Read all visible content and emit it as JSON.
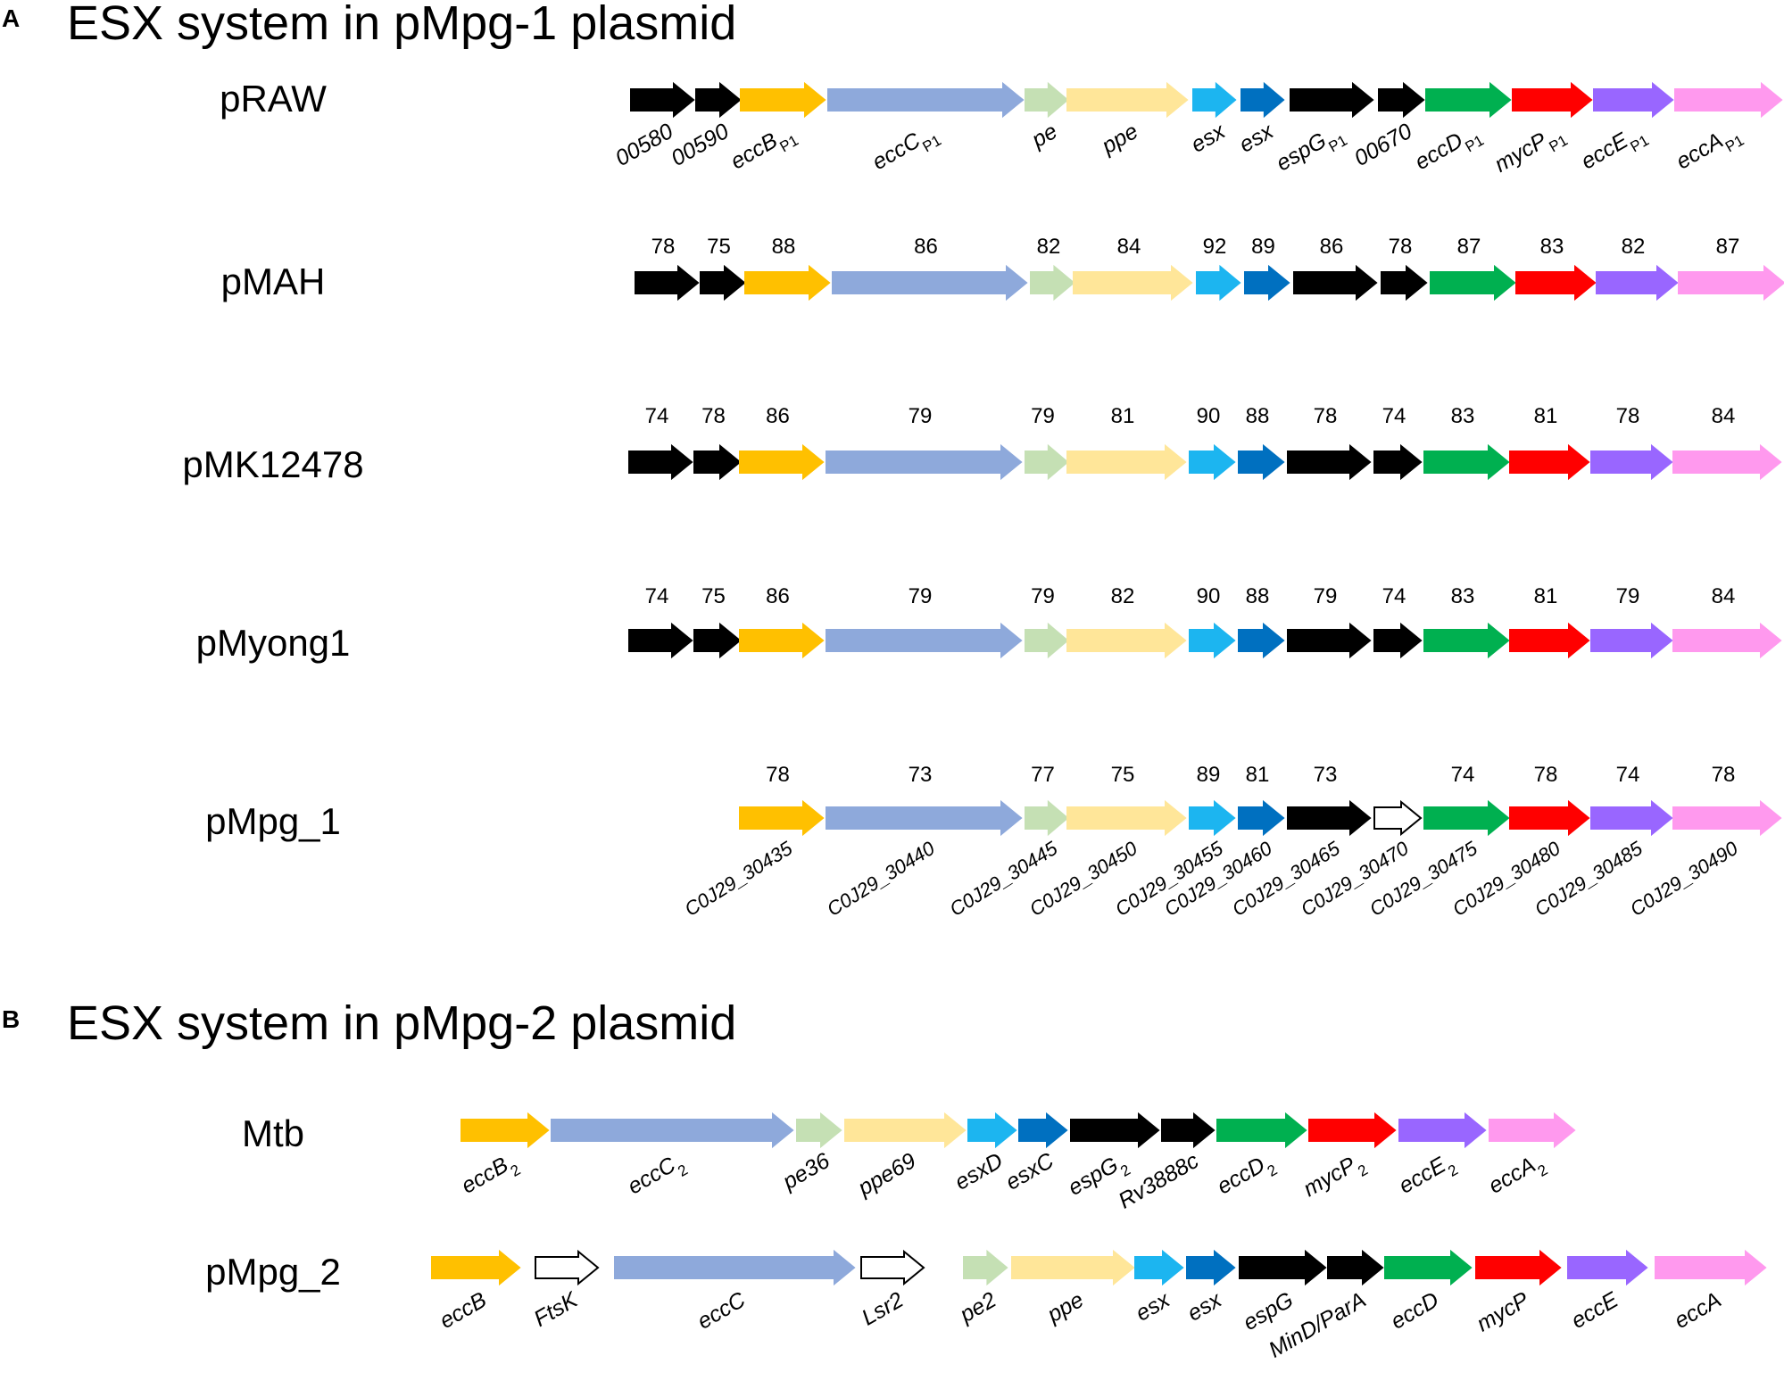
{
  "panels": [
    {
      "letter": "A",
      "title": "ESX system in pMpg-1 plasmid"
    },
    {
      "letter": "B",
      "title": "ESX system in pMpg-2 plasmid"
    }
  ],
  "colors": {
    "black": "#000000",
    "eccB": "#FFC000",
    "eccC": "#8EA9DB",
    "pe": "#C5E0B4",
    "ppe": "#FFE699",
    "esx_light": "#1CB5F0",
    "esx_dark": "#0070C0",
    "eccD": "#00B050",
    "mycP": "#FF0000",
    "eccE": "#9966FF",
    "eccA": "#FF99EE",
    "empty": "#FFFFFF"
  },
  "rows": [
    {
      "name": "pRAW",
      "genes": [
        {
          "color": "black",
          "label": "00580"
        },
        {
          "color": "black",
          "label": "00590"
        },
        {
          "color": "eccB",
          "label": "eccB",
          "sub": "P1"
        },
        {
          "color": "eccC",
          "label": "eccC",
          "sub": "P1"
        },
        {
          "color": "pe",
          "label": "pe"
        },
        {
          "color": "ppe",
          "label": "ppe"
        },
        {
          "color": "esx_light",
          "label": "esx"
        },
        {
          "color": "esx_dark",
          "label": "esx"
        },
        {
          "color": "black",
          "label": "espG",
          "sub": "P1"
        },
        {
          "color": "black",
          "label": "00670"
        },
        {
          "color": "eccD",
          "label": "eccD",
          "sub": "P1"
        },
        {
          "color": "mycP",
          "label": "mycP",
          "sub": "P1"
        },
        {
          "color": "eccE",
          "label": "eccE",
          "sub": "P1"
        },
        {
          "color": "eccA",
          "label": "eccA",
          "sub": "P1"
        }
      ]
    },
    {
      "name": "pMAH",
      "genes": [
        {
          "color": "black",
          "ident": "78"
        },
        {
          "color": "black",
          "ident": "75"
        },
        {
          "color": "eccB",
          "ident": "88"
        },
        {
          "color": "eccC",
          "ident": "86"
        },
        {
          "color": "pe",
          "ident": "82"
        },
        {
          "color": "ppe",
          "ident": "84"
        },
        {
          "color": "esx_light",
          "ident": "92"
        },
        {
          "color": "esx_dark",
          "ident": "89"
        },
        {
          "color": "black",
          "ident": "86"
        },
        {
          "color": "black",
          "ident": "78"
        },
        {
          "color": "eccD",
          "ident": "87"
        },
        {
          "color": "mycP",
          "ident": "83"
        },
        {
          "color": "eccE",
          "ident": "82"
        },
        {
          "color": "eccA",
          "ident": "87"
        }
      ]
    },
    {
      "name": "pMK12478",
      "genes": [
        {
          "color": "black",
          "ident": "74"
        },
        {
          "color": "black",
          "ident": "78"
        },
        {
          "color": "eccB",
          "ident": "86"
        },
        {
          "color": "eccC",
          "ident": "79"
        },
        {
          "color": "pe",
          "ident": "79"
        },
        {
          "color": "ppe",
          "ident": "81"
        },
        {
          "color": "esx_light",
          "ident": "90"
        },
        {
          "color": "esx_dark",
          "ident": "88"
        },
        {
          "color": "black",
          "ident": "78"
        },
        {
          "color": "black",
          "ident": "74"
        },
        {
          "color": "eccD",
          "ident": "83"
        },
        {
          "color": "mycP",
          "ident": "81"
        },
        {
          "color": "eccE",
          "ident": "78"
        },
        {
          "color": "eccA",
          "ident": "84"
        }
      ]
    },
    {
      "name": "pMyong1",
      "genes": [
        {
          "color": "black",
          "ident": "74"
        },
        {
          "color": "black",
          "ident": "75"
        },
        {
          "color": "eccB",
          "ident": "86"
        },
        {
          "color": "eccC",
          "ident": "79"
        },
        {
          "color": "pe",
          "ident": "79"
        },
        {
          "color": "ppe",
          "ident": "82"
        },
        {
          "color": "esx_light",
          "ident": "90"
        },
        {
          "color": "esx_dark",
          "ident": "88"
        },
        {
          "color": "black",
          "ident": "79"
        },
        {
          "color": "black",
          "ident": "74"
        },
        {
          "color": "eccD",
          "ident": "83"
        },
        {
          "color": "mycP",
          "ident": "81"
        },
        {
          "color": "eccE",
          "ident": "79"
        },
        {
          "color": "eccA",
          "ident": "84"
        }
      ]
    },
    {
      "name": "pMpg_1",
      "genes": [
        {
          "color": "eccB",
          "ident": "78",
          "label": "C0J29_30435"
        },
        {
          "color": "eccC",
          "ident": "73",
          "label": "C0J29_30440"
        },
        {
          "color": "pe",
          "ident": "77",
          "label": "C0J29_30445"
        },
        {
          "color": "ppe",
          "ident": "75",
          "label": "C0J29_30450"
        },
        {
          "color": "esx_light",
          "ident": "89",
          "label": "C0J29_30455"
        },
        {
          "color": "esx_dark",
          "ident": "81",
          "label": "C0J29_30460"
        },
        {
          "color": "black",
          "ident": "73",
          "label": "C0J29_30465"
        },
        {
          "color": "empty",
          "label": "C0J29_30470"
        },
        {
          "color": "eccD",
          "ident": "74",
          "label": "C0J29_30475"
        },
        {
          "color": "mycP",
          "ident": "78",
          "label": "C0J29_30480"
        },
        {
          "color": "eccE",
          "ident": "74",
          "label": "C0J29_30485"
        },
        {
          "color": "eccA",
          "ident": "78",
          "label": "C0J29_30490"
        }
      ]
    },
    {
      "name": "Mtb",
      "genes": [
        {
          "color": "eccB",
          "label": "eccB",
          "sub": "2"
        },
        {
          "color": "eccC",
          "label": "eccC",
          "sub": "2"
        },
        {
          "color": "pe",
          "label": "pe36"
        },
        {
          "color": "ppe",
          "label": "ppe69"
        },
        {
          "color": "esx_light",
          "label": "esxD"
        },
        {
          "color": "esx_dark",
          "label": "esxC"
        },
        {
          "color": "black",
          "label": "espG",
          "sub": "2"
        },
        {
          "color": "black",
          "label": "Rv3888c"
        },
        {
          "color": "eccD",
          "label": "eccD",
          "sub": "2"
        },
        {
          "color": "mycP",
          "label": "mycP",
          "sub": "2"
        },
        {
          "color": "eccE",
          "label": "eccE",
          "sub": "2"
        },
        {
          "color": "eccA",
          "label": "eccA",
          "sub": "2"
        }
      ]
    },
    {
      "name": "pMpg_2",
      "genes": [
        {
          "color": "eccB",
          "label": "eccB"
        },
        {
          "color": "empty",
          "label": "FtsK"
        },
        {
          "color": "eccC",
          "label": "eccC"
        },
        {
          "color": "empty",
          "label": "Lsr2"
        },
        {
          "color": "pe",
          "label": "pe2"
        },
        {
          "color": "ppe",
          "label": "ppe"
        },
        {
          "color": "esx_light",
          "label": "esx"
        },
        {
          "color": "esx_dark",
          "label": "esx"
        },
        {
          "color": "black",
          "label": "espG"
        },
        {
          "color": "black",
          "label": "MinD/ParA"
        },
        {
          "color": "eccD",
          "label": "eccD"
        },
        {
          "color": "mycP",
          "label": "mycP"
        },
        {
          "color": "eccE",
          "label": "eccE"
        },
        {
          "color": "eccA",
          "label": "eccA"
        }
      ]
    }
  ]
}
